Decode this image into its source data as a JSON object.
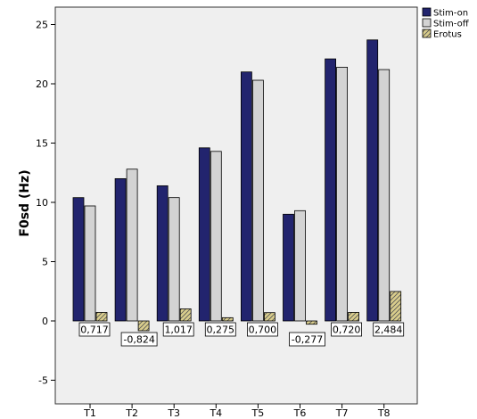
{
  "chart_data": {
    "type": "bar",
    "categories": [
      "T1",
      "T2",
      "T3",
      "T4",
      "T5",
      "T6",
      "T7",
      "T8"
    ],
    "series": [
      {
        "name": "Stim-on",
        "color": "#22246e",
        "pattern": "solid",
        "values": [
          10.4,
          12.0,
          11.4,
          14.6,
          21.0,
          9.0,
          22.1,
          23.7
        ]
      },
      {
        "name": "Stim-off",
        "color": "#d3d3d3",
        "pattern": "solid",
        "values": [
          9.7,
          12.8,
          10.4,
          14.3,
          20.3,
          9.3,
          21.4,
          21.2
        ]
      },
      {
        "name": "Erotus",
        "color": "#d9cd8c",
        "pattern": "diagonal-hatch",
        "values": [
          0.717,
          -0.824,
          1.017,
          0.275,
          0.7,
          -0.277,
          0.72,
          2.484
        ]
      }
    ],
    "data_labels": [
      "0,717",
      "-0,824",
      "1,017",
      "0,275",
      "0,700",
      "-0,277",
      "0,720",
      "2,484"
    ],
    "title": "",
    "xlabel": "",
    "ylabel": "F0sd (Hz)",
    "ylim": [
      -7,
      26
    ],
    "yticks": [
      -5,
      0,
      5,
      10,
      15,
      20,
      25
    ],
    "grid": false,
    "legend_position": "top-right",
    "plot_background": "#efefef"
  }
}
